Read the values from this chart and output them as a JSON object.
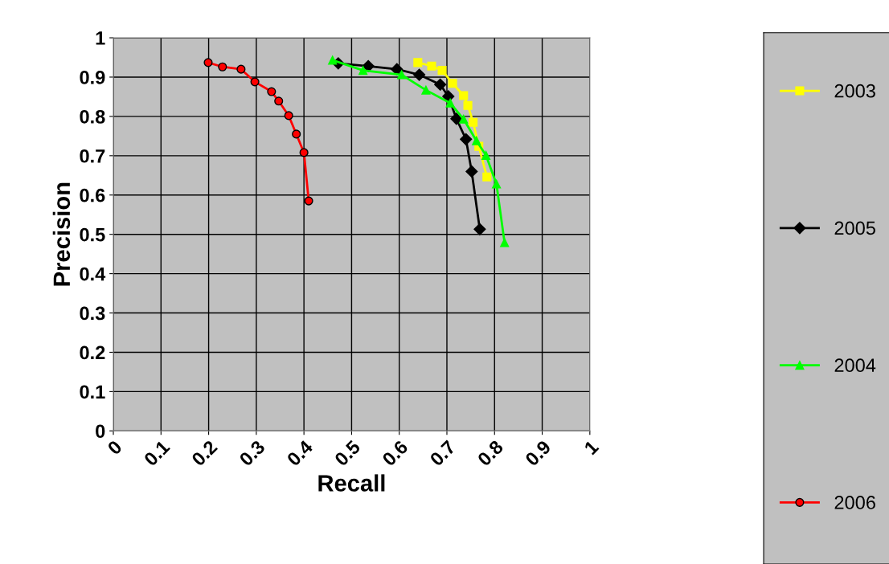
{
  "chart_data": {
    "type": "line",
    "xlabel": "Recall",
    "ylabel": "Precision",
    "xlim": [
      0,
      1
    ],
    "ylim": [
      0,
      1
    ],
    "xticks": [
      0,
      0.1,
      0.2,
      0.3,
      0.4,
      0.5,
      0.6,
      0.7,
      0.8,
      0.9,
      1
    ],
    "yticks": [
      0,
      0.1,
      0.2,
      0.3,
      0.4,
      0.5,
      0.6,
      0.7,
      0.8,
      0.9,
      1
    ],
    "grid": true,
    "legend": "right",
    "series": [
      {
        "name": "2003",
        "color": "#ffff00",
        "marker": "square",
        "x": [
          0.639,
          0.668,
          0.69,
          0.712,
          0.735,
          0.744,
          0.755,
          0.767,
          0.784
        ],
        "values": [
          0.937,
          0.928,
          0.917,
          0.884,
          0.853,
          0.828,
          0.785,
          0.724,
          0.646
        ]
      },
      {
        "name": "2005",
        "color": "#000000",
        "marker": "diamond",
        "x": [
          0.472,
          0.535,
          0.595,
          0.642,
          0.686,
          0.703,
          0.72,
          0.74,
          0.752,
          0.769
        ],
        "values": [
          0.935,
          0.928,
          0.92,
          0.906,
          0.881,
          0.851,
          0.794,
          0.742,
          0.66,
          0.513
        ]
      },
      {
        "name": "2004",
        "color": "#00ff00",
        "marker": "triangle",
        "x": [
          0.46,
          0.524,
          0.605,
          0.656,
          0.707,
          0.735,
          0.762,
          0.782,
          0.804,
          0.821
        ],
        "values": [
          0.943,
          0.917,
          0.906,
          0.867,
          0.834,
          0.793,
          0.738,
          0.701,
          0.628,
          0.479
        ]
      },
      {
        "name": "2006",
        "color": "#ff0000",
        "marker": "circle",
        "x": [
          0.199,
          0.229,
          0.268,
          0.297,
          0.332,
          0.347,
          0.368,
          0.384,
          0.4,
          0.41
        ],
        "values": [
          0.937,
          0.926,
          0.92,
          0.888,
          0.863,
          0.839,
          0.802,
          0.755,
          0.708,
          0.585
        ]
      }
    ]
  }
}
